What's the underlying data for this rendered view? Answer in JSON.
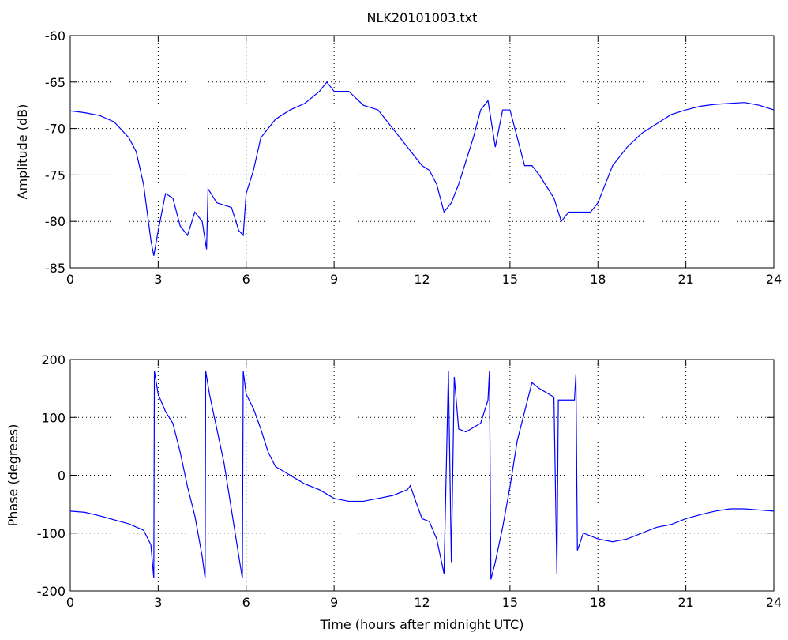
{
  "chart_data": [
    {
      "type": "line",
      "title": "NLK20101003.txt",
      "ylabel": "Amplitude (dB)",
      "xlim": [
        0,
        24
      ],
      "xticks": [
        0,
        3,
        6,
        9,
        12,
        15,
        18,
        21,
        24
      ],
      "ylim": [
        -85,
        -60
      ],
      "yticks": [
        -85,
        -80,
        -75,
        -70,
        -65,
        -60
      ],
      "grid": true,
      "x": [
        0,
        0.5,
        1,
        1.5,
        2,
        2.25,
        2.5,
        2.75,
        2.85,
        3,
        3.25,
        3.5,
        3.75,
        4,
        4.25,
        4.5,
        4.65,
        4.7,
        5,
        5.5,
        5.75,
        5.9,
        6,
        6.25,
        6.5,
        7,
        7.5,
        8,
        8.5,
        8.75,
        9,
        9.5,
        10,
        10.5,
        11,
        11.5,
        12,
        12.25,
        12.5,
        12.75,
        13,
        13.25,
        13.5,
        13.75,
        14,
        14.25,
        14.5,
        14.75,
        15,
        15.25,
        15.5,
        15.75,
        16,
        16.5,
        16.75,
        17,
        17.5,
        17.75,
        18,
        18.25,
        18.5,
        19,
        19.5,
        20,
        20.5,
        21,
        21.5,
        22,
        22.5,
        23,
        23.5,
        24
      ],
      "series": [
        {
          "color": "#0000ff",
          "values": [
            -68.1,
            -68.3,
            -68.6,
            -69.3,
            -71,
            -72.5,
            -76,
            -82,
            -83.7,
            -81,
            -77,
            -77.5,
            -80.5,
            -81.5,
            -79,
            -80,
            -83,
            -76.5,
            -78,
            -78.5,
            -81,
            -81.5,
            -77,
            -74.5,
            -71,
            -69,
            -68,
            -67.3,
            -66,
            -65,
            -66,
            -66,
            -67.5,
            -68,
            -70,
            -72,
            -74,
            -74.5,
            -76,
            -79,
            -78,
            -76,
            -73.5,
            -71,
            -68,
            -67,
            -72,
            -68,
            -68,
            -71,
            -74,
            -74,
            -75,
            -77.5,
            -80,
            -79,
            -79,
            -79,
            -78,
            -76,
            -74,
            -72,
            -70.5,
            -69.5,
            -68.5,
            -68,
            -67.6,
            -67.4,
            -67.3,
            -67.2,
            -67.5,
            -68
          ]
        }
      ]
    },
    {
      "type": "line",
      "ylabel": "Phase (degrees)",
      "xlabel": "Time (hours after midnight UTC)",
      "xlim": [
        0,
        24
      ],
      "xticks": [
        0,
        3,
        6,
        9,
        12,
        15,
        18,
        21,
        24
      ],
      "ylim": [
        -200,
        200
      ],
      "yticks": [
        -200,
        -100,
        0,
        100,
        200
      ],
      "grid": true,
      "x": [
        0,
        0.5,
        1,
        1.5,
        2,
        2.5,
        2.75,
        2.85,
        2.87,
        3,
        3.25,
        3.5,
        3.75,
        4,
        4.25,
        4.5,
        4.6,
        4.62,
        4.75,
        5,
        5.25,
        5.5,
        5.75,
        5.87,
        5.9,
        6,
        6.25,
        6.5,
        6.75,
        7,
        7.5,
        8,
        8.5,
        9,
        9.5,
        10,
        10.5,
        11,
        11.5,
        11.6,
        11.75,
        12,
        12.25,
        12.5,
        12.75,
        12.9,
        13,
        13.1,
        13.25,
        13.5,
        14,
        14.25,
        14.3,
        14.35,
        14.5,
        14.75,
        15,
        15.25,
        15.5,
        15.75,
        16,
        16.5,
        16.6,
        16.65,
        17,
        17.2,
        17.25,
        17.3,
        17.5,
        18,
        18.5,
        19,
        19.5,
        20,
        20.5,
        21,
        21.5,
        22,
        22.5,
        23,
        23.5,
        24
      ],
      "series": [
        {
          "color": "#0000ff",
          "values": [
            -62,
            -64,
            -70,
            -77,
            -84,
            -95,
            -120,
            -178,
            180,
            140,
            110,
            90,
            40,
            -20,
            -70,
            -140,
            -178,
            180,
            140,
            80,
            20,
            -60,
            -140,
            -178,
            180,
            140,
            115,
            80,
            40,
            15,
            0,
            -15,
            -25,
            -40,
            -45,
            -45,
            -40,
            -35,
            -25,
            -18,
            -40,
            -75,
            -80,
            -110,
            -170,
            180,
            -150,
            170,
            80,
            75,
            90,
            130,
            180,
            -180,
            -150,
            -90,
            -20,
            60,
            110,
            160,
            150,
            135,
            -170,
            130,
            130,
            130,
            175,
            -130,
            -100,
            -110,
            -115,
            -110,
            -100,
            -90,
            -85,
            -75,
            -68,
            -62,
            -58,
            -58,
            -60,
            -62
          ]
        }
      ]
    }
  ]
}
